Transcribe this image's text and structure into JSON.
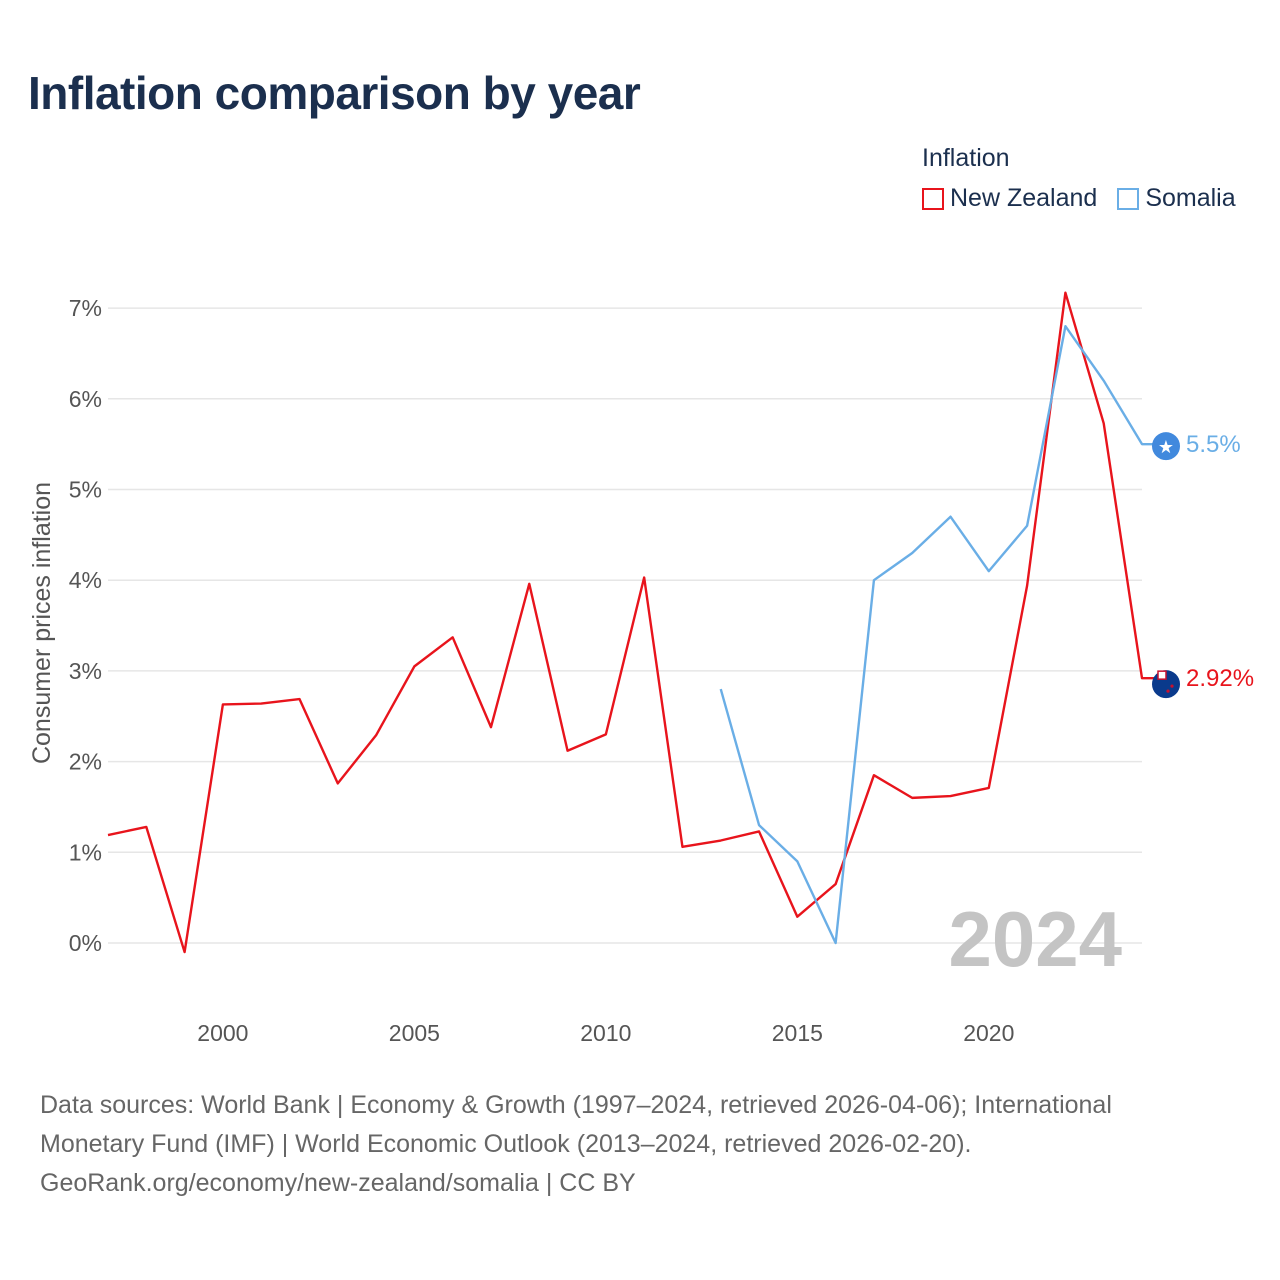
{
  "title": "Inflation comparison by year",
  "legend_title": "Inflation",
  "footer": {
    "line1": "Data sources: World Bank | Economy & Growth (1997–2024, retrieved 2026-04-06); International",
    "line2": "Monetary Fund (IMF) | World Economic Outlook (2013–2024, retrieved 2026-02-20).",
    "line3": "GeoRank.org/economy/new-zealand/somalia | CC BY"
  },
  "colors": {
    "new_zealand": "#e8141c",
    "somalia": "#6aaee6",
    "grid": "#e6e6e6",
    "title": "#1b2f4e"
  },
  "chart_data": {
    "type": "line",
    "title": "Inflation comparison by year",
    "xlabel": "",
    "ylabel": "Consumer prices inflation",
    "xlim": [
      1997,
      2024
    ],
    "ylim": [
      -0.5,
      7.5
    ],
    "x_ticks": [
      2000,
      2005,
      2010,
      2015,
      2020
    ],
    "x_tick_labels": [
      "2000",
      "2005",
      "2010",
      "2015",
      "2020"
    ],
    "y_ticks": [
      0,
      1,
      2,
      3,
      4,
      5,
      6,
      7
    ],
    "y_tick_labels": [
      "0%",
      "1%",
      "2%",
      "3%",
      "4%",
      "5%",
      "6%",
      "7%"
    ],
    "grid": true,
    "legend_position": "top-right",
    "annotation": "2024",
    "series": [
      {
        "name": "New Zealand",
        "key": "new_zealand",
        "icon": "new-zealand-flag-icon",
        "end_label": "2.92%",
        "x": [
          1997,
          1998,
          1999,
          2000,
          2001,
          2002,
          2003,
          2004,
          2005,
          2006,
          2007,
          2008,
          2009,
          2010,
          2011,
          2012,
          2013,
          2014,
          2015,
          2016,
          2017,
          2018,
          2019,
          2020,
          2021,
          2022,
          2023,
          2024
        ],
        "values": [
          1.19,
          1.28,
          -0.1,
          2.63,
          2.64,
          2.69,
          1.76,
          2.29,
          3.05,
          3.37,
          2.38,
          3.96,
          2.12,
          2.3,
          4.03,
          1.06,
          1.13,
          1.23,
          0.29,
          0.65,
          1.85,
          1.6,
          1.62,
          1.71,
          3.94,
          7.17,
          5.73,
          2.92
        ]
      },
      {
        "name": "Somalia",
        "key": "somalia",
        "icon": "somalia-flag-icon",
        "end_label": "5.5%",
        "x": [
          2013,
          2014,
          2015,
          2016,
          2017,
          2018,
          2019,
          2020,
          2021,
          2022,
          2023,
          2024
        ],
        "values": [
          2.8,
          1.3,
          0.9,
          0.0,
          4.0,
          4.3,
          4.7,
          4.1,
          4.6,
          6.8,
          6.2,
          5.5
        ]
      }
    ]
  }
}
